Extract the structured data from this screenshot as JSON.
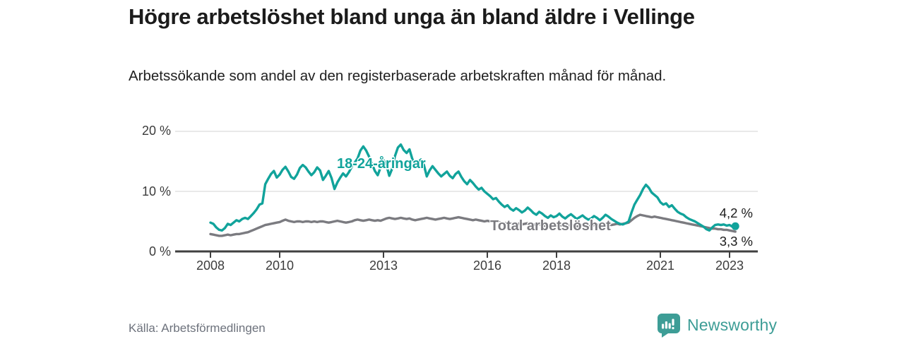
{
  "header": {
    "title": "Högre arbetslöshet bland unga än bland äldre i Vellinge",
    "subtitle": "Arbetssökande som andel av den registerbaserade arbetskraften månad för månad."
  },
  "chart_data": {
    "type": "line",
    "x_start_year": 2008,
    "x_step": "monthly",
    "x_end": "2023-03",
    "ylim": [
      0,
      20
    ],
    "grid": "horizontal",
    "y_ticks": [
      {
        "value": 0,
        "label": "0 %"
      },
      {
        "value": 10,
        "label": "10 %"
      },
      {
        "value": 20,
        "label": "20 %"
      }
    ],
    "x_ticks": [
      {
        "year": 2008,
        "label": "2008"
      },
      {
        "year": 2010,
        "label": "2010"
      },
      {
        "year": 2013,
        "label": "2013"
      },
      {
        "year": 2016,
        "label": "2016"
      },
      {
        "year": 2018,
        "label": "2018"
      },
      {
        "year": 2021,
        "label": "2021"
      },
      {
        "year": 2023,
        "label": "2023"
      }
    ],
    "series": [
      {
        "name": "total",
        "label": "Total arbetslöshet",
        "color": "#7b7b80",
        "end_value": 3.3,
        "end_label": "3,3 %",
        "end_dot": false,
        "values": [
          2.9,
          2.8,
          2.7,
          2.6,
          2.6,
          2.7,
          2.8,
          2.7,
          2.8,
          2.9,
          2.9,
          3.0,
          3.1,
          3.2,
          3.4,
          3.6,
          3.8,
          4.0,
          4.2,
          4.4,
          4.5,
          4.6,
          4.7,
          4.8,
          4.9,
          5.1,
          5.3,
          5.1,
          5.0,
          4.9,
          5.0,
          5.0,
          4.9,
          5.0,
          5.0,
          4.9,
          5.0,
          4.9,
          5.0,
          5.0,
          4.9,
          4.8,
          4.9,
          5.0,
          5.1,
          5.0,
          4.9,
          4.8,
          4.9,
          5.0,
          5.2,
          5.3,
          5.2,
          5.1,
          5.2,
          5.3,
          5.2,
          5.1,
          5.2,
          5.1,
          5.3,
          5.5,
          5.6,
          5.5,
          5.4,
          5.5,
          5.6,
          5.5,
          5.4,
          5.5,
          5.3,
          5.2,
          5.3,
          5.4,
          5.5,
          5.6,
          5.5,
          5.4,
          5.3,
          5.4,
          5.5,
          5.6,
          5.5,
          5.4,
          5.5,
          5.6,
          5.7,
          5.6,
          5.5,
          5.4,
          5.3,
          5.2,
          5.3,
          5.2,
          5.1,
          5.0,
          5.1,
          5.0,
          4.9,
          5.0,
          4.9,
          4.8,
          4.7,
          4.8,
          4.7,
          4.6,
          4.7,
          4.6,
          4.5,
          4.6,
          4.7,
          4.6,
          4.5,
          4.4,
          4.5,
          4.4,
          4.3,
          4.4,
          4.3,
          4.4,
          4.3,
          4.4,
          4.3,
          4.2,
          4.3,
          4.4,
          4.3,
          4.2,
          4.3,
          4.4,
          4.3,
          4.2,
          4.3,
          4.4,
          4.5,
          4.4,
          4.5,
          4.6,
          4.5,
          4.4,
          4.5,
          4.6,
          4.5,
          4.6,
          4.7,
          4.8,
          5.2,
          5.6,
          5.9,
          6.1,
          6.0,
          5.9,
          5.8,
          5.7,
          5.8,
          5.7,
          5.6,
          5.5,
          5.4,
          5.3,
          5.2,
          5.1,
          5.0,
          4.9,
          4.8,
          4.7,
          4.6,
          4.5,
          4.4,
          4.3,
          4.2,
          4.1,
          4.0,
          3.9,
          3.8,
          3.8,
          3.7,
          3.7,
          3.6,
          3.6,
          3.5,
          3.4,
          3.3
        ]
      },
      {
        "name": "youth-18-24",
        "label": "18-24-åringar",
        "color": "#11a39b",
        "end_value": 4.2,
        "end_label": "4,2 %",
        "end_dot": true,
        "values": [
          4.8,
          4.6,
          4.0,
          3.6,
          3.5,
          3.9,
          4.6,
          4.4,
          4.8,
          5.2,
          5.0,
          5.4,
          5.6,
          5.4,
          5.9,
          6.4,
          7.0,
          7.8,
          8.0,
          11.2,
          12.1,
          12.9,
          13.4,
          12.3,
          12.8,
          13.6,
          14.1,
          13.3,
          12.4,
          12.1,
          12.8,
          13.9,
          14.4,
          14.0,
          13.3,
          12.7,
          13.2,
          14.0,
          13.5,
          11.9,
          12.6,
          13.4,
          12.2,
          10.4,
          11.5,
          12.3,
          13.0,
          12.5,
          13.2,
          14.1,
          14.8,
          15.5,
          16.8,
          17.5,
          16.8,
          15.8,
          14.6,
          13.4,
          12.7,
          14.0,
          15.2,
          14.4,
          12.6,
          13.8,
          15.9,
          17.3,
          17.8,
          16.9,
          16.4,
          17.0,
          15.4,
          14.6,
          14.9,
          15.3,
          14.4,
          12.5,
          13.5,
          14.2,
          13.6,
          13.0,
          12.5,
          12.9,
          13.3,
          12.6,
          12.2,
          12.9,
          13.3,
          12.4,
          11.7,
          11.2,
          11.9,
          11.4,
          10.8,
          10.3,
          10.6,
          10.0,
          9.6,
          9.2,
          8.7,
          8.9,
          8.3,
          7.8,
          7.4,
          7.7,
          7.1,
          6.8,
          7.2,
          6.9,
          6.5,
          6.8,
          7.3,
          6.9,
          6.4,
          6.1,
          6.6,
          6.3,
          5.9,
          5.6,
          6.0,
          5.7,
          5.9,
          6.3,
          5.8,
          5.5,
          5.9,
          6.2,
          5.8,
          5.4,
          5.7,
          6.0,
          5.6,
          5.3,
          5.5,
          5.9,
          5.6,
          5.2,
          5.6,
          6.1,
          5.8,
          5.4,
          5.1,
          4.8,
          4.6,
          4.5,
          4.7,
          5.0,
          6.5,
          7.8,
          8.6,
          9.4,
          10.4,
          11.1,
          10.6,
          9.8,
          9.4,
          9.0,
          8.2,
          7.8,
          8.0,
          7.4,
          7.7,
          7.1,
          6.6,
          6.3,
          6.1,
          5.7,
          5.4,
          5.2,
          5.0,
          4.7,
          4.4,
          4.1,
          3.7,
          3.5,
          4.0,
          4.4,
          4.5,
          4.4,
          4.5,
          4.3,
          4.4,
          4.1,
          4.2
        ]
      }
    ],
    "style": {
      "grid_color": "#dcdcdc",
      "axis_color": "#404040",
      "tick_text_color": "#3c3c3c"
    }
  },
  "footer": {
    "source": "Källa: Arbetsförmedlingen",
    "logo_text": "Newsworthy",
    "logo_color": "#3d9d96"
  }
}
